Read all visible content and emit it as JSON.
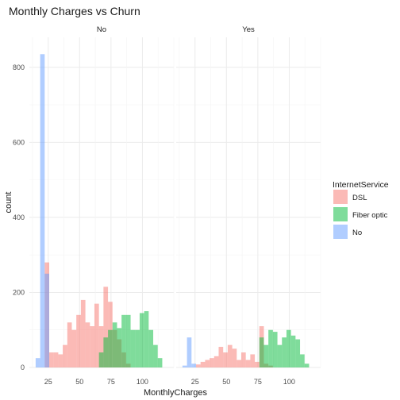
{
  "chart_data": {
    "type": "histogram",
    "title": "Monthly Charges vs Churn",
    "xlabel": "MonthlyCharges",
    "ylabel": "count",
    "facets": [
      "No",
      "Yes"
    ],
    "x_range": [
      10,
      125
    ],
    "x_ticks": [
      25,
      50,
      75,
      100
    ],
    "ylim": [
      0,
      880
    ],
    "y_ticks": [
      0,
      200,
      400,
      600,
      800
    ],
    "bin_start": 15,
    "bin_width": 3.6,
    "position": "identity",
    "legend": {
      "title": "InternetService",
      "placement": "right"
    },
    "series": [
      {
        "name": "DSL",
        "color": "#F8766D"
      },
      {
        "name": "Fiber optic",
        "color": "#00BA38"
      },
      {
        "name": "No",
        "color": "#619CFF"
      }
    ],
    "panels": [
      {
        "facet": "No",
        "values": {
          "No": [
            25,
            835,
            250,
            0,
            0,
            0,
            0,
            0,
            0,
            0,
            0,
            0,
            0,
            0,
            0,
            0,
            0,
            0,
            0,
            0,
            0,
            0,
            0,
            0,
            0,
            0,
            0,
            0
          ],
          "DSL": [
            0,
            0,
            280,
            40,
            40,
            35,
            60,
            120,
            100,
            140,
            180,
            120,
            110,
            170,
            110,
            215,
            175,
            100,
            75,
            40,
            10,
            0,
            0,
            0,
            0,
            0,
            0,
            0
          ],
          "Fiber optic": [
            0,
            0,
            0,
            0,
            0,
            0,
            0,
            0,
            0,
            0,
            0,
            0,
            0,
            0,
            40,
            80,
            100,
            120,
            105,
            140,
            140,
            100,
            100,
            145,
            150,
            100,
            60,
            25
          ]
        }
      },
      {
        "facet": "Yes",
        "values": {
          "No": [
            5,
            80,
            10,
            0,
            0,
            0,
            0,
            0,
            0,
            0,
            0,
            0,
            0,
            0,
            0,
            0,
            0,
            0,
            0,
            0,
            0,
            0,
            0,
            0,
            0,
            0,
            0,
            0
          ],
          "DSL": [
            0,
            0,
            0,
            8,
            15,
            20,
            25,
            30,
            55,
            40,
            60,
            50,
            20,
            40,
            20,
            35,
            15,
            110,
            10,
            5,
            0,
            0,
            0,
            0,
            0,
            0,
            0,
            0
          ],
          "Fiber optic": [
            0,
            0,
            0,
            0,
            0,
            0,
            0,
            0,
            0,
            0,
            0,
            0,
            0,
            0,
            0,
            0,
            0,
            80,
            60,
            100,
            95,
            60,
            80,
            100,
            85,
            75,
            35,
            10
          ]
        }
      }
    ]
  }
}
